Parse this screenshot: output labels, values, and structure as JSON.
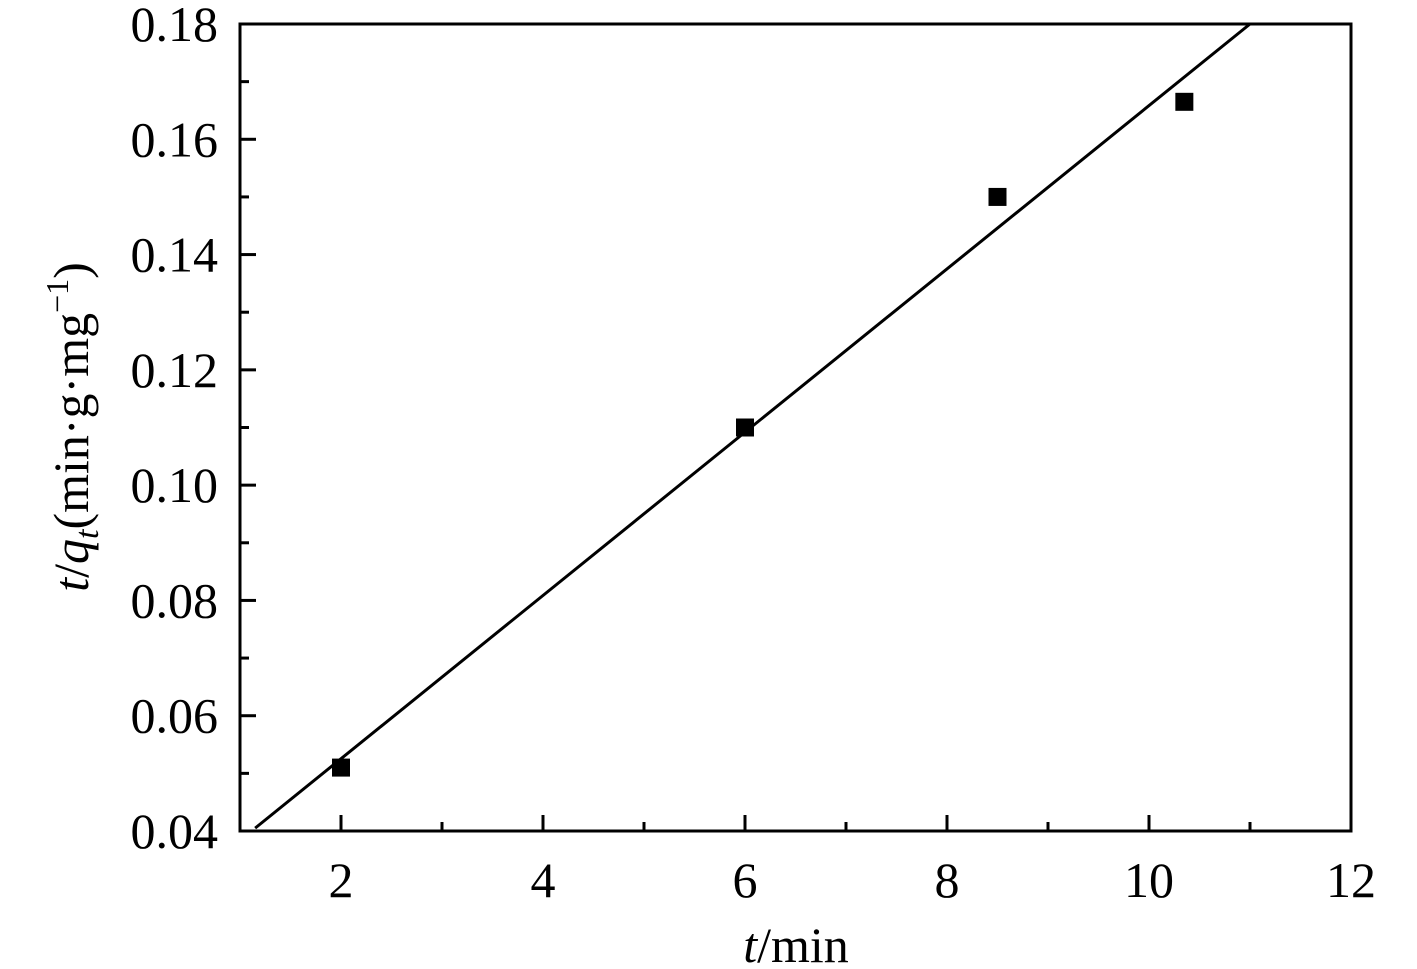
{
  "chart_data": {
    "type": "scatter",
    "xlabel": {
      "var": "t",
      "unit": "/min"
    },
    "ylabel": {
      "var": "t",
      "slash": "/",
      "q": "q",
      "sub": "t",
      "unit": "(min·g·mg",
      "sup": "−1",
      "close": ")"
    },
    "xlim": [
      1,
      12
    ],
    "ylim": [
      0.04,
      0.18
    ],
    "x_ticks": [
      2,
      4,
      6,
      8,
      10,
      12
    ],
    "x_tick_labels": [
      "2",
      "4",
      "6",
      "8",
      "10",
      "12"
    ],
    "x_minor_ticks": [
      1,
      3,
      5,
      7,
      9,
      11
    ],
    "y_ticks": [
      0.04,
      0.06,
      0.08,
      0.1,
      0.12,
      0.14,
      0.16,
      0.18
    ],
    "y_tick_labels": [
      "0.04",
      "0.06",
      "0.08",
      "0.10",
      "0.12",
      "0.14",
      "0.16",
      "0.18"
    ],
    "y_minor_ticks": [
      0.05,
      0.07,
      0.09,
      0.11,
      0.13,
      0.15,
      0.17
    ],
    "grid": false,
    "series": [
      {
        "marker": "square",
        "color": "#000000",
        "points": [
          {
            "x": 2.0,
            "y": 0.051
          },
          {
            "x": 6.0,
            "y": 0.11
          },
          {
            "x": 8.5,
            "y": 0.15
          },
          {
            "x": 10.35,
            "y": 0.1665
          }
        ]
      }
    ],
    "fit_line": {
      "x": [
        1.15,
        11.0
      ],
      "y": [
        0.0405,
        0.18
      ]
    }
  }
}
